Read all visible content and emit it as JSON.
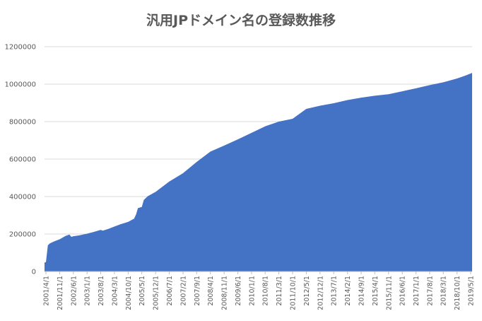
{
  "chart_data": {
    "type": "area",
    "title": "汎用JPドメイン名の登録数推移",
    "xlabel": "",
    "ylabel": "",
    "ylim": [
      0,
      1200000
    ],
    "y_ticks": [
      0,
      200000,
      400000,
      600000,
      800000,
      1000000,
      1200000
    ],
    "y_tick_labels": [
      "0",
      "200000",
      "400000",
      "600000",
      "800000",
      "1000000",
      "1200000"
    ],
    "x_tick_labels": [
      "2001/4/1",
      "2001/11/1",
      "2002/6/1",
      "2003/1/1",
      "2003/8/1",
      "2004/3/1",
      "2004/10/1",
      "2005/5/1",
      "2005/12/1",
      "2006/7/1",
      "2007/2/1",
      "2007/9/1",
      "2008/4/1",
      "2008/11/1",
      "2009/6/1",
      "2010/1/1",
      "2010/8/1",
      "2011/3/1",
      "2011/10/1",
      "2012/5/1",
      "2012/12/1",
      "2013/7/1",
      "2014/2/1",
      "2014/9/1",
      "2015/4/1",
      "2015/11/1",
      "2016/6/1",
      "2017/1/1",
      "2017/8/1",
      "2018/3/1",
      "2018/10/1",
      "2019/5/1"
    ],
    "grid": true,
    "fill_color": "#4472c4",
    "series": [
      {
        "x": [
          "2001/2/1",
          "2001/4/1",
          "2001/5/1",
          "2001/6/1",
          "2001/8/1",
          "2001/11/1",
          "2002/2/1",
          "2002/4/1",
          "2002/5/1",
          "2002/6/1",
          "2002/9/1",
          "2003/1/1",
          "2003/4/1",
          "2003/8/1",
          "2003/9/1",
          "2003/12/1",
          "2004/3/1",
          "2004/6/1",
          "2004/10/1",
          "2005/1/1",
          "2005/2/1",
          "2005/3/1",
          "2005/5/1",
          "2005/6/1",
          "2005/8/1",
          "2005/12/1",
          "2006/7/1",
          "2007/2/1",
          "2007/9/1",
          "2008/4/1",
          "2008/11/1",
          "2009/6/1",
          "2010/1/1",
          "2010/8/1",
          "2011/3/1",
          "2011/10/1",
          "2012/5/1",
          "2012/12/1",
          "2013/7/1",
          "2014/2/1",
          "2014/9/1",
          "2015/4/1",
          "2015/11/1",
          "2016/6/1",
          "2017/1/1",
          "2017/8/1",
          "2018/3/1",
          "2018/10/1",
          "2019/2/1",
          "2019/6/1"
        ],
        "values": [
          48000,
          50000,
          140000,
          150000,
          160000,
          172000,
          190000,
          197000,
          185000,
          188000,
          193000,
          202000,
          210000,
          222000,
          218000,
          228000,
          240000,
          252000,
          265000,
          282000,
          305000,
          338000,
          345000,
          382000,
          402000,
          425000,
          480000,
          525000,
          585000,
          640000,
          672000,
          705000,
          740000,
          775000,
          800000,
          815000,
          868000,
          885000,
          898000,
          915000,
          928000,
          938000,
          946000,
          962000,
          978000,
          995000,
          1010000,
          1030000,
          1045000,
          1060000
        ]
      }
    ]
  }
}
